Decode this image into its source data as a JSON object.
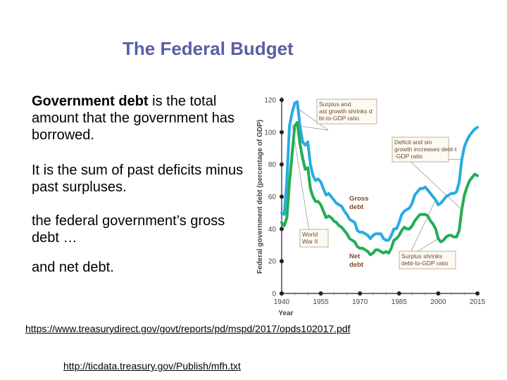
{
  "slide": {
    "title": "The Federal Budget",
    "p1_bold": "Government debt",
    "p1_rest": " is the total amount that the government has borrowed.",
    "p2": "It is the sum of past deficits minus past surpluses.",
    "p3": "the federal government’s gross debt …",
    "p4": "and net debt.",
    "link1": "https://www.treasurydirect.gov/govt/reports/pd/mspd/2017/opds102017.pdf",
    "link2": "http://ticdata.treasury.gov/Publish/mfh.txt"
  },
  "chart_data": {
    "type": "line",
    "xlabel": "Year",
    "ylabel": "Federal government debt (percentage of GDP)",
    "xlim": [
      1940,
      2015
    ],
    "ylim": [
      0,
      120
    ],
    "x_ticks": [
      1940,
      1955,
      1970,
      1985,
      2000,
      2015
    ],
    "y_ticks": [
      0,
      20,
      40,
      60,
      80,
      100,
      120
    ],
    "colors": {
      "gross": "#29abe2",
      "net": "#1fae52",
      "axis": "#222222",
      "annotation": "#6b4a2a",
      "box": "#b59a7a"
    },
    "series": [
      {
        "name": "Gross debt",
        "x": [
          1940,
          1941,
          1942,
          1943,
          1944,
          1945,
          1946,
          1947,
          1948,
          1949,
          1950,
          1951,
          1952,
          1953,
          1954,
          1955,
          1956,
          1957,
          1958,
          1959,
          1960,
          1961,
          1962,
          1963,
          1964,
          1965,
          1966,
          1967,
          1968,
          1969,
          1970,
          1971,
          1972,
          1973,
          1974,
          1975,
          1976,
          1977,
          1978,
          1979,
          1980,
          1981,
          1982,
          1983,
          1984,
          1985,
          1986,
          1987,
          1988,
          1989,
          1990,
          1991,
          1992,
          1993,
          1994,
          1995,
          1996,
          1997,
          1998,
          1999,
          2000,
          2001,
          2002,
          2003,
          2004,
          2005,
          2006,
          2007,
          2008,
          2009,
          2010,
          2011,
          2012,
          2013,
          2014,
          2015
        ],
        "values": [
          50,
          49,
          70,
          104,
          112,
          118,
          119,
          104,
          94,
          92,
          94,
          80,
          73,
          70,
          71,
          69,
          65,
          61,
          62,
          60,
          58,
          56,
          55,
          54,
          51,
          49,
          46,
          45,
          44,
          39,
          38,
          38,
          37,
          36,
          34,
          36,
          37,
          37,
          37,
          34,
          33,
          33,
          36,
          40,
          40,
          44,
          49,
          51,
          52,
          53,
          56,
          61,
          63,
          65,
          65,
          66,
          64,
          62,
          60,
          58,
          55,
          56,
          58,
          60,
          61,
          62,
          62,
          63,
          69,
          83,
          91,
          95,
          98,
          100,
          102,
          103
        ]
      },
      {
        "name": "Net debt",
        "x": [
          1940,
          1941,
          1942,
          1943,
          1944,
          1945,
          1946,
          1947,
          1948,
          1949,
          1950,
          1951,
          1952,
          1953,
          1954,
          1955,
          1956,
          1957,
          1958,
          1959,
          1960,
          1961,
          1962,
          1963,
          1964,
          1965,
          1966,
          1967,
          1968,
          1969,
          1970,
          1971,
          1972,
          1973,
          1974,
          1975,
          1976,
          1977,
          1978,
          1979,
          1980,
          1981,
          1982,
          1983,
          1984,
          1985,
          1986,
          1987,
          1988,
          1989,
          1990,
          1991,
          1992,
          1993,
          1994,
          1995,
          1996,
          1997,
          1998,
          1999,
          2000,
          2001,
          2002,
          2003,
          2004,
          2005,
          2006,
          2007,
          2008,
          2009,
          2010,
          2011,
          2012,
          2013,
          2014,
          2015
        ],
        "values": [
          44,
          42,
          47,
          69,
          86,
          104,
          106,
          93,
          84,
          77,
          78,
          65,
          60,
          57,
          57,
          55,
          51,
          47,
          48,
          47,
          45,
          44,
          42,
          41,
          39,
          37,
          34,
          33,
          32,
          29,
          28,
          28,
          27,
          26,
          24,
          25,
          27,
          27,
          26,
          25,
          26,
          25,
          28,
          33,
          34,
          36,
          39,
          41,
          40,
          40,
          42,
          45,
          47,
          49,
          49,
          49,
          48,
          45,
          43,
          40,
          34,
          32,
          33,
          35,
          36,
          36,
          35,
          35,
          39,
          52,
          61,
          66,
          70,
          72,
          74,
          73
        ]
      }
    ],
    "labels": {
      "gross": "Gross debt",
      "net": "Net debt",
      "ww2": "World War II"
    },
    "annotations": [
      "Surplus and fast growth shrinks debt-to-GDP ratio",
      "Deficit and slow growth increases debt-to-GDP ratio",
      "Surplus shrinks debt-to-GDP ratio"
    ],
    "grid": false
  }
}
